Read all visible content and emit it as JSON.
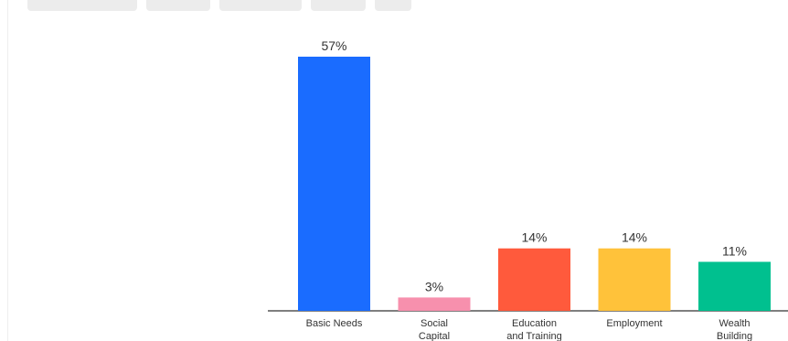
{
  "chart_data": {
    "type": "bar",
    "categories": [
      "Basic Needs",
      "Social Capital",
      "Education and Training",
      "Employment",
      "Wealth Building"
    ],
    "category_lines": [
      [
        "Basic Needs"
      ],
      [
        "Social",
        "Capital"
      ],
      [
        "Education",
        "and Training"
      ],
      [
        "Employment"
      ],
      [
        "Wealth",
        "Building"
      ]
    ],
    "values": [
      57,
      3,
      14,
      14,
      11
    ],
    "value_labels": [
      "57%",
      "3%",
      "14%",
      "14%",
      "11%"
    ],
    "colors": [
      "#1a6cff",
      "#f790ad",
      "#ff5a3c",
      "#ffc23a",
      "#00c08f"
    ],
    "ylim": [
      0,
      57
    ],
    "grid": false
  }
}
